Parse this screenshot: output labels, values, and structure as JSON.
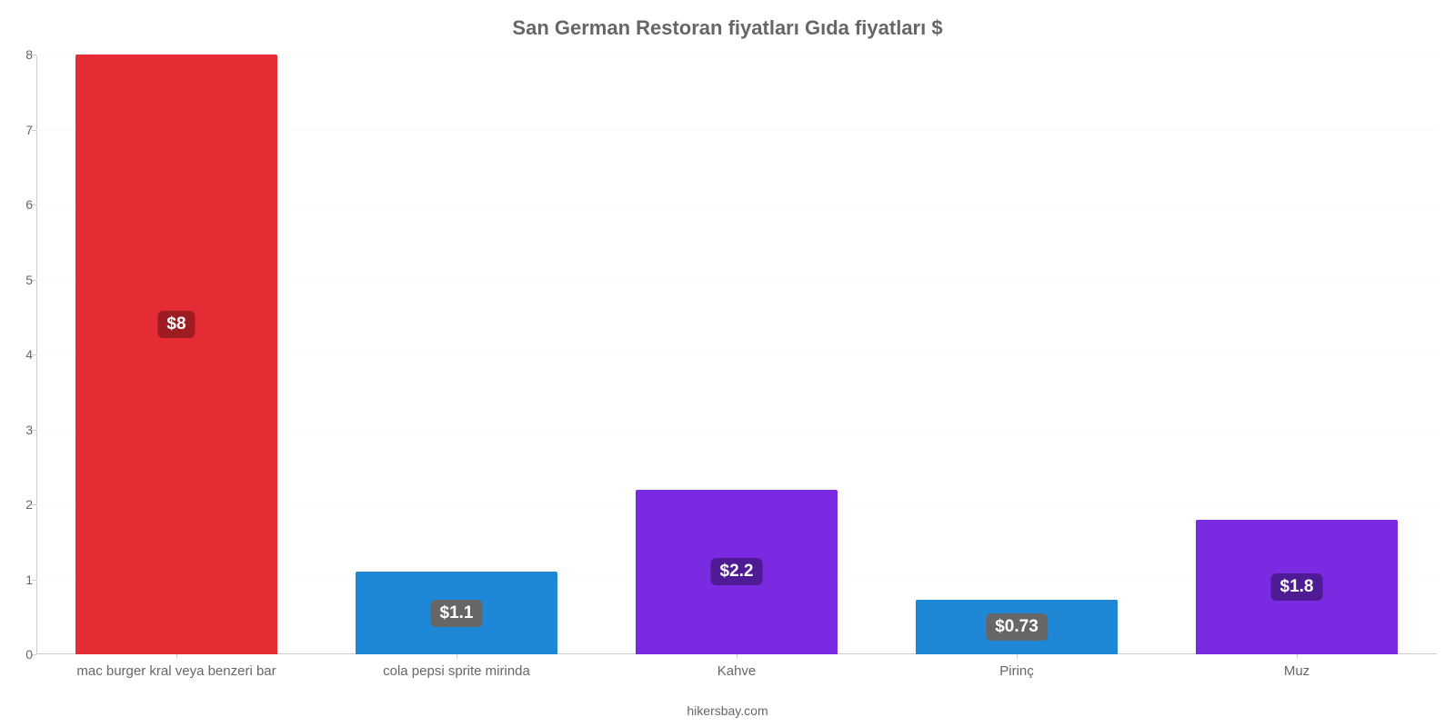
{
  "chart": {
    "type": "bar",
    "title": "San German Restoran fiyatları Gıda fiyatları $",
    "title_fontsize": 22,
    "title_color": "#666666",
    "credit": "hikersbay.com",
    "credit_fontsize": 14,
    "background_color": "#ffffff",
    "grid_color": "#fafafa",
    "axis_color": "#cccccc",
    "tick_label_color": "#666666",
    "tick_label_fontsize": 14,
    "xtick_label_fontsize": 15,
    "value_label_fontsize": 19,
    "ylim_min": 0,
    "ylim_max": 8,
    "ytick_step": 1,
    "yticks": [
      {
        "v": 0,
        "label": "0"
      },
      {
        "v": 1,
        "label": "1"
      },
      {
        "v": 2,
        "label": "2"
      },
      {
        "v": 3,
        "label": "3"
      },
      {
        "v": 4,
        "label": "4"
      },
      {
        "v": 5,
        "label": "5"
      },
      {
        "v": 6,
        "label": "6"
      },
      {
        "v": 7,
        "label": "7"
      },
      {
        "v": 8,
        "label": "8"
      }
    ],
    "bar_width_ratio": 0.72,
    "categories": [
      "mac burger kral veya benzeri bar",
      "cola pepsi sprite mirinda",
      "Kahve",
      "Pirinç",
      "Muz"
    ],
    "values": [
      8,
      1.1,
      2.2,
      0.73,
      1.8
    ],
    "value_labels": [
      "$8",
      "$1.1",
      "$2.2",
      "$0.73",
      "$1.8"
    ],
    "bar_colors": [
      "#e52b33",
      "#1e87d6",
      "#7a2be2",
      "#1e87d6",
      "#7a2be2"
    ],
    "value_bg_colors": [
      "#9c1c22",
      "#666666",
      "#4f1b94",
      "#666666",
      "#4f1b94"
    ]
  }
}
